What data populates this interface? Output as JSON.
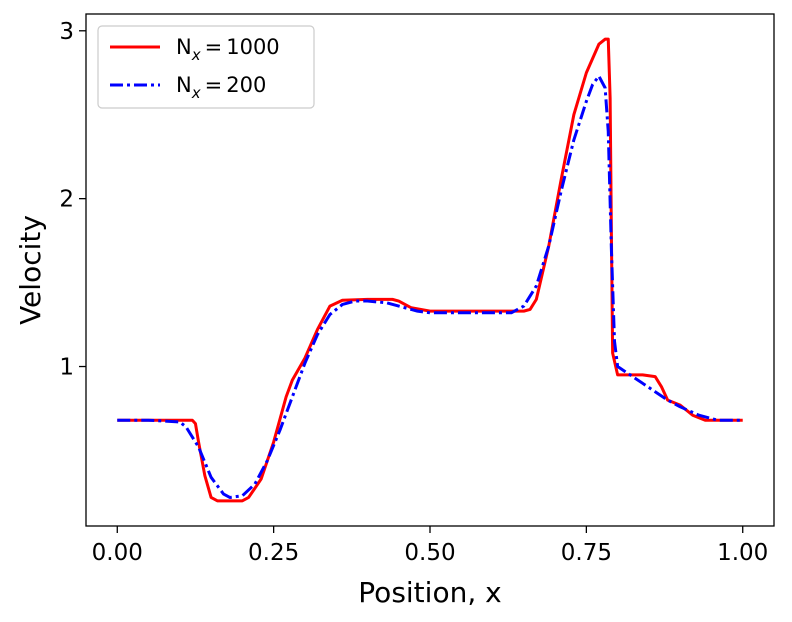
{
  "chart_data": {
    "type": "line",
    "title": "",
    "xlabel": "Position, x",
    "ylabel": "Velocity",
    "xlim": [
      -0.05,
      1.05
    ],
    "ylim": [
      0.05,
      3.1
    ],
    "xticks": [
      0.0,
      0.25,
      0.5,
      0.75,
      1.0
    ],
    "xtick_labels": [
      "0.00",
      "0.25",
      "0.50",
      "0.75",
      "1.00"
    ],
    "yticks": [
      1,
      2,
      3
    ],
    "ytick_labels": [
      "1",
      "2",
      "3"
    ],
    "grid": false,
    "legend_position": "top-left",
    "series": [
      {
        "name": "N_x = 1000",
        "legend_main": "N",
        "legend_sub": "x",
        "legend_value": "1000",
        "color": "#ff0000",
        "style": "solid",
        "x": [
          0.0,
          0.05,
          0.1,
          0.12,
          0.125,
          0.13,
          0.14,
          0.15,
          0.16,
          0.18,
          0.2,
          0.21,
          0.23,
          0.25,
          0.27,
          0.28,
          0.3,
          0.32,
          0.34,
          0.36,
          0.4,
          0.44,
          0.45,
          0.47,
          0.5,
          0.55,
          0.6,
          0.65,
          0.66,
          0.67,
          0.69,
          0.71,
          0.73,
          0.75,
          0.77,
          0.78,
          0.785,
          0.788,
          0.79,
          0.792,
          0.8,
          0.84,
          0.86,
          0.87,
          0.88,
          0.9,
          0.92,
          0.94,
          1.0
        ],
        "y": [
          0.68,
          0.68,
          0.68,
          0.68,
          0.66,
          0.55,
          0.35,
          0.22,
          0.2,
          0.2,
          0.2,
          0.22,
          0.33,
          0.55,
          0.82,
          0.92,
          1.05,
          1.22,
          1.36,
          1.395,
          1.4,
          1.4,
          1.39,
          1.35,
          1.33,
          1.33,
          1.33,
          1.33,
          1.34,
          1.4,
          1.72,
          2.12,
          2.5,
          2.75,
          2.92,
          2.95,
          2.95,
          2.6,
          1.8,
          1.08,
          0.95,
          0.95,
          0.94,
          0.88,
          0.8,
          0.77,
          0.71,
          0.68,
          0.68
        ]
      },
      {
        "name": "N_x = 200",
        "legend_main": "N",
        "legend_sub": "x",
        "legend_value": "200",
        "color": "#0000ff",
        "style": "dashdot",
        "x": [
          0.0,
          0.05,
          0.1,
          0.11,
          0.13,
          0.15,
          0.17,
          0.18,
          0.2,
          0.22,
          0.24,
          0.26,
          0.28,
          0.3,
          0.32,
          0.34,
          0.36,
          0.38,
          0.4,
          0.43,
          0.46,
          0.48,
          0.5,
          0.55,
          0.6,
          0.63,
          0.65,
          0.67,
          0.69,
          0.71,
          0.73,
          0.75,
          0.76,
          0.77,
          0.78,
          0.785,
          0.79,
          0.795,
          0.8,
          0.82,
          0.84,
          0.86,
          0.88,
          0.9,
          0.93,
          0.96,
          1.0
        ],
        "y": [
          0.68,
          0.68,
          0.67,
          0.64,
          0.52,
          0.34,
          0.24,
          0.22,
          0.23,
          0.3,
          0.44,
          0.62,
          0.82,
          1.02,
          1.19,
          1.31,
          1.37,
          1.39,
          1.39,
          1.38,
          1.35,
          1.33,
          1.32,
          1.32,
          1.32,
          1.32,
          1.36,
          1.48,
          1.72,
          2.05,
          2.35,
          2.58,
          2.68,
          2.73,
          2.66,
          2.4,
          1.7,
          1.15,
          1.0,
          0.95,
          0.9,
          0.85,
          0.8,
          0.76,
          0.71,
          0.68,
          0.68
        ]
      }
    ]
  }
}
